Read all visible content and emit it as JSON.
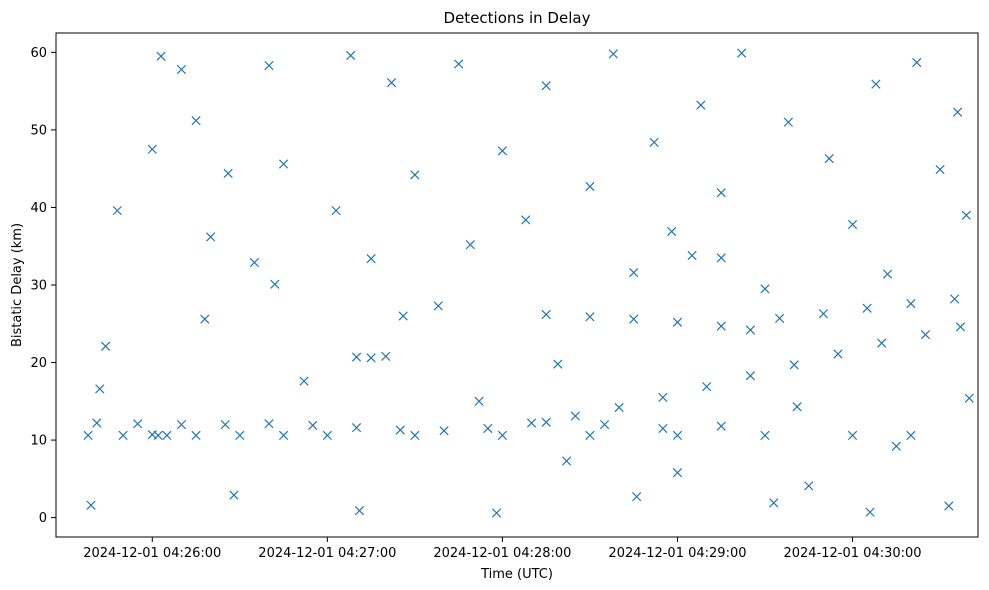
{
  "chart_data": {
    "type": "scatter",
    "title": "Detections in Delay",
    "xlabel": "Time (UTC)",
    "ylabel": "Bistatic Delay (km)",
    "marker": "x",
    "color": "#1f77b4",
    "grid": false,
    "legend": "none",
    "x_axis": {
      "type": "time",
      "range": [
        "2024-12-01 04:25:27",
        "2024-12-01 04:30:43"
      ],
      "ticks": [
        "2024-12-01 04:26:00",
        "2024-12-01 04:27:00",
        "2024-12-01 04:28:00",
        "2024-12-01 04:29:00",
        "2024-12-01 04:30:00"
      ]
    },
    "y_axis": {
      "range": [
        -2.5,
        62.5
      ],
      "ticks": [
        0,
        10,
        20,
        30,
        40,
        50,
        60
      ]
    },
    "series": [
      {
        "points": [
          [
            "2024-12-01 04:25:41",
            12.2
          ],
          [
            "2024-12-01 04:25:55",
            12.1
          ],
          [
            "2024-12-01 04:26:10",
            12.0
          ],
          [
            "2024-12-01 04:26:25",
            12.0
          ],
          [
            "2024-12-01 04:26:40",
            12.1
          ],
          [
            "2024-12-01 04:26:55",
            11.9
          ],
          [
            "2024-12-01 04:27:10",
            11.6
          ],
          [
            "2024-12-01 04:27:25",
            11.3
          ],
          [
            "2024-12-01 04:27:40",
            11.2
          ],
          [
            "2024-12-01 04:27:55",
            11.5
          ],
          [
            "2024-12-01 04:28:10",
            12.2
          ],
          [
            "2024-12-01 04:28:25",
            13.1
          ],
          [
            "2024-12-01 04:28:40",
            14.2
          ],
          [
            "2024-12-01 04:28:55",
            15.5
          ],
          [
            "2024-12-01 04:29:10",
            16.9
          ],
          [
            "2024-12-01 04:29:25",
            18.3
          ],
          [
            "2024-12-01 04:29:40",
            19.7
          ],
          [
            "2024-12-01 04:29:55",
            21.1
          ],
          [
            "2024-12-01 04:30:10",
            22.5
          ],
          [
            "2024-12-01 04:30:25",
            23.6
          ],
          [
            "2024-12-01 04:30:37",
            24.6
          ],
          [
            "2024-12-01 04:25:38",
            10.6
          ],
          [
            "2024-12-01 04:25:50",
            10.6
          ],
          [
            "2024-12-01 04:26:02",
            10.6
          ],
          [
            "2024-12-01 04:26:15",
            10.6
          ],
          [
            "2024-12-01 04:26:30",
            10.6
          ],
          [
            "2024-12-01 04:26:45",
            10.6
          ],
          [
            "2024-12-01 04:27:00",
            10.6
          ],
          [
            "2024-12-01 04:27:30",
            10.6
          ],
          [
            "2024-12-01 04:28:00",
            10.6
          ],
          [
            "2024-12-01 04:28:30",
            10.6
          ],
          [
            "2024-12-01 04:29:00",
            10.6
          ],
          [
            "2024-12-01 04:29:30",
            10.6
          ],
          [
            "2024-12-01 04:30:00",
            10.6
          ],
          [
            "2024-12-01 04:30:20",
            10.6
          ],
          [
            "2024-12-01 04:28:15",
            26.2
          ],
          [
            "2024-12-01 04:28:30",
            25.9
          ],
          [
            "2024-12-01 04:28:45",
            25.6
          ],
          [
            "2024-12-01 04:29:00",
            25.2
          ],
          [
            "2024-12-01 04:29:15",
            24.7
          ],
          [
            "2024-12-01 04:29:25",
            24.2
          ],
          [
            "2024-12-01 04:29:35",
            25.7
          ],
          [
            "2024-12-01 04:29:50",
            26.3
          ],
          [
            "2024-12-01 04:30:05",
            27.0
          ],
          [
            "2024-12-01 04:30:20",
            27.6
          ],
          [
            "2024-12-01 04:30:35",
            28.2
          ],
          [
            "2024-12-01 04:28:15",
            12.3
          ],
          [
            "2024-12-01 04:28:35",
            12.0
          ],
          [
            "2024-12-01 04:28:55",
            11.5
          ],
          [
            "2024-12-01 04:29:15",
            11.8
          ],
          [
            "2024-12-01 04:29:05",
            33.8
          ],
          [
            "2024-12-01 04:29:15",
            33.5
          ],
          [
            "2024-12-01 04:27:10",
            20.7
          ],
          [
            "2024-12-01 04:27:15",
            20.6
          ],
          [
            "2024-12-01 04:27:20",
            20.8
          ],
          [
            "2024-12-01 04:26:00",
            10.7
          ],
          [
            "2024-12-01 04:26:05",
            10.6
          ],
          [
            "2024-12-01 04:25:42",
            16.6
          ],
          [
            "2024-12-01 04:25:48",
            39.6
          ],
          [
            "2024-12-01 04:26:00",
            47.5
          ],
          [
            "2024-12-01 04:26:03",
            59.5
          ],
          [
            "2024-12-01 04:26:10",
            57.8
          ],
          [
            "2024-12-01 04:26:15",
            51.2
          ],
          [
            "2024-12-01 04:26:20",
            36.2
          ],
          [
            "2024-12-01 04:26:26",
            44.4
          ],
          [
            "2024-12-01 04:26:35",
            32.9
          ],
          [
            "2024-12-01 04:26:40",
            58.3
          ],
          [
            "2024-12-01 04:26:45",
            45.6
          ],
          [
            "2024-12-01 04:26:52",
            17.6
          ],
          [
            "2024-12-01 04:27:03",
            39.6
          ],
          [
            "2024-12-01 04:27:08",
            59.6
          ],
          [
            "2024-12-01 04:27:15",
            33.4
          ],
          [
            "2024-12-01 04:27:22",
            56.1
          ],
          [
            "2024-12-01 04:27:30",
            44.2
          ],
          [
            "2024-12-01 04:27:38",
            27.3
          ],
          [
            "2024-12-01 04:27:45",
            58.5
          ],
          [
            "2024-12-01 04:27:52",
            15.0
          ],
          [
            "2024-12-01 04:28:00",
            47.3
          ],
          [
            "2024-12-01 04:28:08",
            38.4
          ],
          [
            "2024-12-01 04:28:15",
            55.7
          ],
          [
            "2024-12-01 04:28:22",
            7.3
          ],
          [
            "2024-12-01 04:28:30",
            42.7
          ],
          [
            "2024-12-01 04:28:38",
            59.8
          ],
          [
            "2024-12-01 04:28:45",
            31.6
          ],
          [
            "2024-12-01 04:28:52",
            48.4
          ],
          [
            "2024-12-01 04:29:00",
            5.8
          ],
          [
            "2024-12-01 04:29:08",
            53.2
          ],
          [
            "2024-12-01 04:29:15",
            41.9
          ],
          [
            "2024-12-01 04:29:22",
            59.9
          ],
          [
            "2024-12-01 04:29:30",
            29.5
          ],
          [
            "2024-12-01 04:29:38",
            51.0
          ],
          [
            "2024-12-01 04:29:45",
            4.1
          ],
          [
            "2024-12-01 04:29:52",
            46.3
          ],
          [
            "2024-12-01 04:30:00",
            37.8
          ],
          [
            "2024-12-01 04:30:08",
            55.9
          ],
          [
            "2024-12-01 04:30:15",
            9.2
          ],
          [
            "2024-12-01 04:30:22",
            58.7
          ],
          [
            "2024-12-01 04:30:30",
            44.9
          ],
          [
            "2024-12-01 04:30:36",
            52.3
          ],
          [
            "2024-12-01 04:30:40",
            15.4
          ],
          [
            "2024-12-01 04:25:39",
            1.6
          ],
          [
            "2024-12-01 04:26:28",
            2.9
          ],
          [
            "2024-12-01 04:27:11",
            0.9
          ],
          [
            "2024-12-01 04:27:58",
            0.6
          ],
          [
            "2024-12-01 04:28:46",
            2.7
          ],
          [
            "2024-12-01 04:29:33",
            1.9
          ],
          [
            "2024-12-01 04:30:06",
            0.7
          ],
          [
            "2024-12-01 04:30:33",
            1.5
          ],
          [
            "2024-12-01 04:25:44",
            22.1
          ],
          [
            "2024-12-01 04:26:18",
            25.6
          ],
          [
            "2024-12-01 04:26:42",
            30.1
          ],
          [
            "2024-12-01 04:27:26",
            26.0
          ],
          [
            "2024-12-01 04:27:49",
            35.2
          ],
          [
            "2024-12-01 04:28:19",
            19.8
          ],
          [
            "2024-12-01 04:28:58",
            36.9
          ],
          [
            "2024-12-01 04:29:41",
            14.3
          ],
          [
            "2024-12-01 04:30:12",
            31.4
          ],
          [
            "2024-12-01 04:30:39",
            39.0
          ]
        ]
      }
    ]
  }
}
